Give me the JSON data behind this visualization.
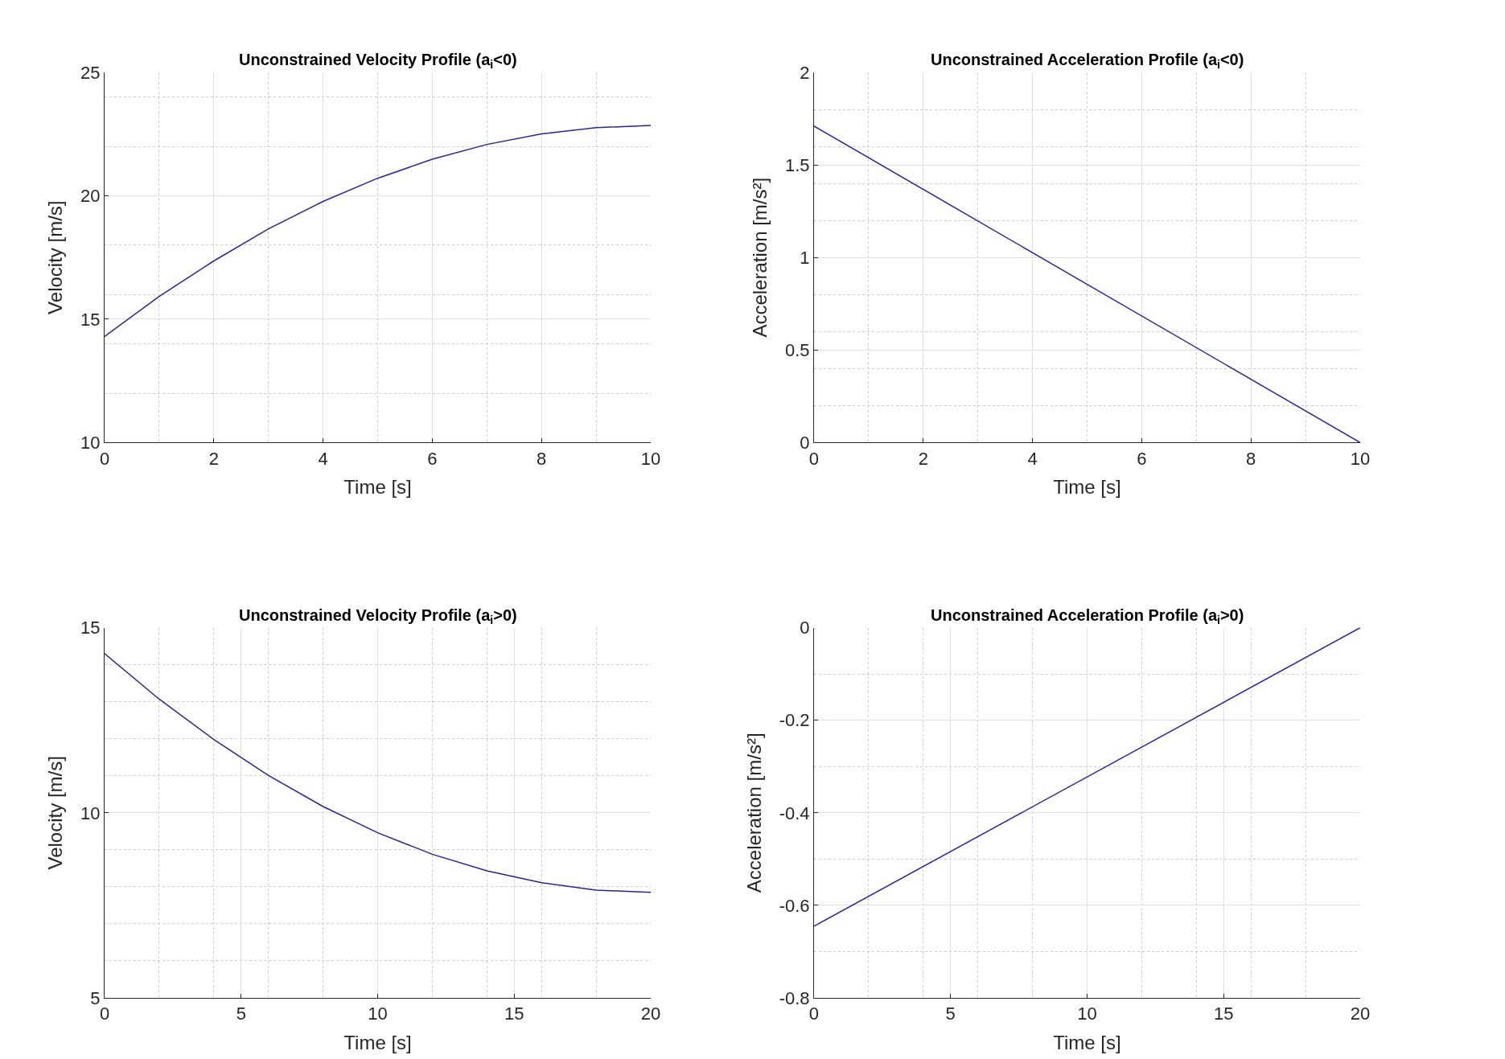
{
  "chart_data": [
    {
      "type": "line",
      "title": "Unconstrained Velocity Profile (a$_{i}$<0)",
      "xlabel": "Time [s]",
      "ylabel": "Velocity [m/s]",
      "x": [
        0,
        1,
        2,
        3,
        4,
        5,
        6,
        7,
        8,
        9,
        10
      ],
      "values": [
        14.3,
        15.92,
        17.36,
        18.66,
        19.77,
        20.71,
        21.48,
        22.08,
        22.51,
        22.76,
        22.85
      ],
      "color": "#25259a",
      "xlim": [
        0,
        10
      ],
      "ylim": [
        10,
        25
      ],
      "xticks": [
        0,
        2,
        4,
        6,
        8,
        10
      ],
      "yticks": [
        10,
        15,
        20,
        25
      ],
      "grid": true
    },
    {
      "type": "line",
      "title": "Unconstrained Acceleration Profile (a$_{i}$<0)",
      "xlabel": "Time [s]",
      "ylabel": "Acceleration [m/s²]",
      "x": [
        0,
        10
      ],
      "values": [
        1.71,
        0
      ],
      "color": "#25259a",
      "xlim": [
        0,
        10
      ],
      "ylim": [
        0,
        2
      ],
      "xticks": [
        0,
        2,
        4,
        6,
        8,
        10
      ],
      "yticks": [
        0,
        0.5,
        1,
        1.5,
        2
      ],
      "grid": true
    },
    {
      "type": "line",
      "title": "Unconstrained Velocity Profile (a$_{i}$>0)",
      "xlabel": "Time [s]",
      "ylabel": "Velocity [m/s]",
      "x": [
        0,
        2,
        4,
        6,
        8,
        10,
        12,
        14,
        16,
        18,
        20
      ],
      "values": [
        14.3,
        13.07,
        11.98,
        11.01,
        10.17,
        9.46,
        8.88,
        8.43,
        8.11,
        7.91,
        7.85
      ],
      "color": "#25259a",
      "xlim": [
        0,
        20
      ],
      "ylim": [
        5,
        15
      ],
      "xticks": [
        0,
        5,
        10,
        15,
        20
      ],
      "yticks": [
        5,
        10,
        15
      ],
      "grid": true
    },
    {
      "type": "line",
      "title": "Unconstrained Acceleration Profile (a$_{i}$>0)",
      "xlabel": "Time [s]",
      "ylabel": "Acceleration [m/s²]",
      "x": [
        0,
        20
      ],
      "values": [
        -0.645,
        0
      ],
      "color": "#25259a",
      "xlim": [
        0,
        20
      ],
      "ylim": [
        -0.8,
        0
      ],
      "xticks": [
        0,
        5,
        10,
        15,
        20
      ],
      "yticks": [
        -0.8,
        -0.6,
        -0.4,
        -0.2,
        0
      ],
      "grid": true
    }
  ]
}
